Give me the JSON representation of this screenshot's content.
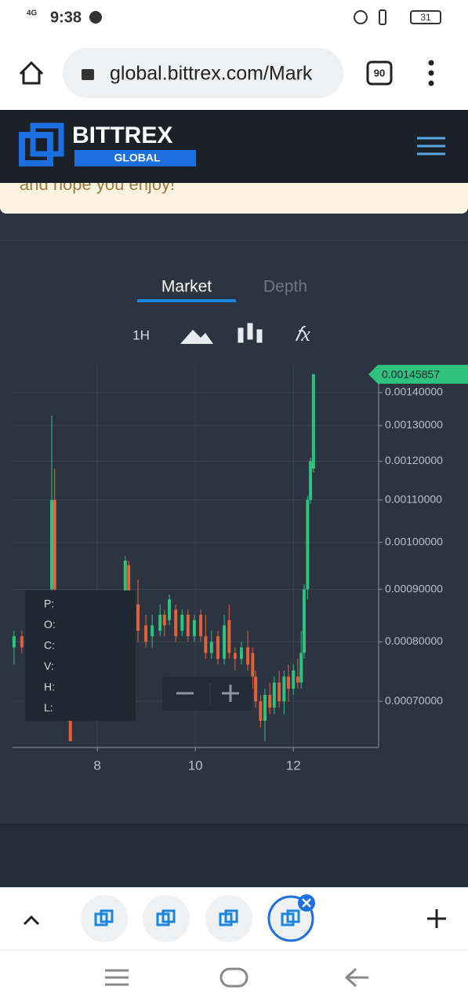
{
  "status_bar": {
    "network": "4G",
    "time": "9:38",
    "battery": "31"
  },
  "browser": {
    "url": "global.bittrex.com/Mark",
    "tab_count": "90"
  },
  "header": {
    "brand": "BITTREX",
    "sub_brand": "GLOBAL"
  },
  "banner": {
    "text": "and hope you enjoy!"
  },
  "chart_tabs": [
    "Market",
    "Depth"
  ],
  "interval": "1H",
  "chart_data": {
    "type": "candlestick",
    "x": [
      6.3,
      6.46,
      7.07,
      7.13,
      7.45,
      8.57,
      8.64,
      8.83,
      8.99,
      9.12,
      9.28,
      9.37,
      9.47,
      9.6,
      9.73,
      9.85,
      9.98,
      10.11,
      10.21,
      10.33,
      10.46,
      10.59,
      10.69,
      10.81,
      10.94,
      11.07,
      11.17,
      11.23,
      11.33,
      11.42,
      11.52,
      11.61,
      11.71,
      11.81,
      11.9,
      12.0,
      12.09,
      12.16,
      12.22,
      12.29,
      12.35,
      12.41
    ],
    "open": [
      0.00079,
      0.00081,
      0.0009,
      0.0011,
      0.00067,
      0.00085,
      0.00095,
      0.00087,
      0.00083,
      0.00081,
      0.00082,
      0.00085,
      0.00084,
      0.00086,
      0.00082,
      0.00085,
      0.00081,
      0.00085,
      0.00081,
      0.00078,
      0.00081,
      0.00077,
      0.00084,
      0.00078,
      0.00077,
      0.00079,
      0.00078,
      0.00074,
      0.0007,
      0.00067,
      0.00071,
      0.00069,
      0.00073,
      0.0007,
      0.00074,
      0.00072,
      0.00074,
      0.00073,
      0.00078,
      0.0009,
      0.0011,
      0.00118
    ],
    "high": [
      0.00082,
      0.00082,
      0.00133,
      0.00118,
      0.00068,
      0.00097,
      0.00096,
      0.00092,
      0.00085,
      0.00085,
      0.00087,
      0.00086,
      0.00089,
      0.00087,
      0.00086,
      0.00086,
      0.00085,
      0.00086,
      0.00085,
      0.00082,
      0.00082,
      0.00085,
      0.00087,
      0.00079,
      0.0008,
      0.00082,
      0.00079,
      0.00075,
      0.00071,
      0.00072,
      0.00073,
      0.00074,
      0.00075,
      0.00075,
      0.00076,
      0.00076,
      0.00077,
      0.00082,
      0.00091,
      0.00111,
      0.00121,
      0.00146
    ],
    "low": [
      0.00076,
      0.00078,
      0.00088,
      0.00085,
      0.00064,
      0.00084,
      0.00085,
      0.0008,
      0.00079,
      0.00079,
      0.00081,
      0.00081,
      0.00083,
      0.0008,
      0.00081,
      0.0008,
      0.0008,
      0.0008,
      0.00077,
      0.00077,
      0.00076,
      0.00076,
      0.00077,
      0.00075,
      0.00076,
      0.00075,
      0.00072,
      0.00069,
      0.00066,
      0.00064,
      0.00068,
      0.00068,
      0.00069,
      0.00068,
      0.0007,
      0.00071,
      0.00072,
      0.00072,
      0.00077,
      0.00088,
      0.00109,
      0.00117
    ],
    "close": [
      0.00081,
      0.00079,
      0.0011,
      0.0009,
      0.00064,
      0.00096,
      0.00087,
      0.00082,
      0.0008,
      0.00083,
      0.00085,
      0.00083,
      0.00088,
      0.00081,
      0.00085,
      0.00081,
      0.00084,
      0.00081,
      0.00078,
      0.0008,
      0.00077,
      0.00083,
      0.00078,
      0.00077,
      0.00079,
      0.00076,
      0.00074,
      0.0007,
      0.00067,
      0.00071,
      0.00069,
      0.00073,
      0.0007,
      0.00074,
      0.00072,
      0.00075,
      0.00073,
      0.00078,
      0.0009,
      0.0011,
      0.0012,
      0.00145857
    ],
    "up_color": "#2ec27e",
    "down_color": "#e0623a",
    "xlim": [
      6.27,
      13.74
    ],
    "xticks": [
      8,
      10,
      12
    ],
    "ylim": [
      0.000631,
      0.001489
    ],
    "log_scale": true,
    "grid": true,
    "yticks": [
      {
        "value": 0.0007,
        "label": "0.00070000"
      },
      {
        "value": 0.0008,
        "label": "0.00080000"
      },
      {
        "value": 0.0009,
        "label": "0.00090000"
      },
      {
        "value": 0.001,
        "label": "0.00100000"
      },
      {
        "value": 0.0011,
        "label": "0.00110000"
      },
      {
        "value": 0.0012,
        "label": "0.00120000"
      },
      {
        "value": 0.0013,
        "label": "0.00130000"
      },
      {
        "value": 0.0014,
        "label": "0.00140000"
      }
    ],
    "last_price": 0.00145857,
    "legend_labels": [
      "P:",
      "O:",
      "C:",
      "V:",
      "H:",
      "L:"
    ]
  }
}
